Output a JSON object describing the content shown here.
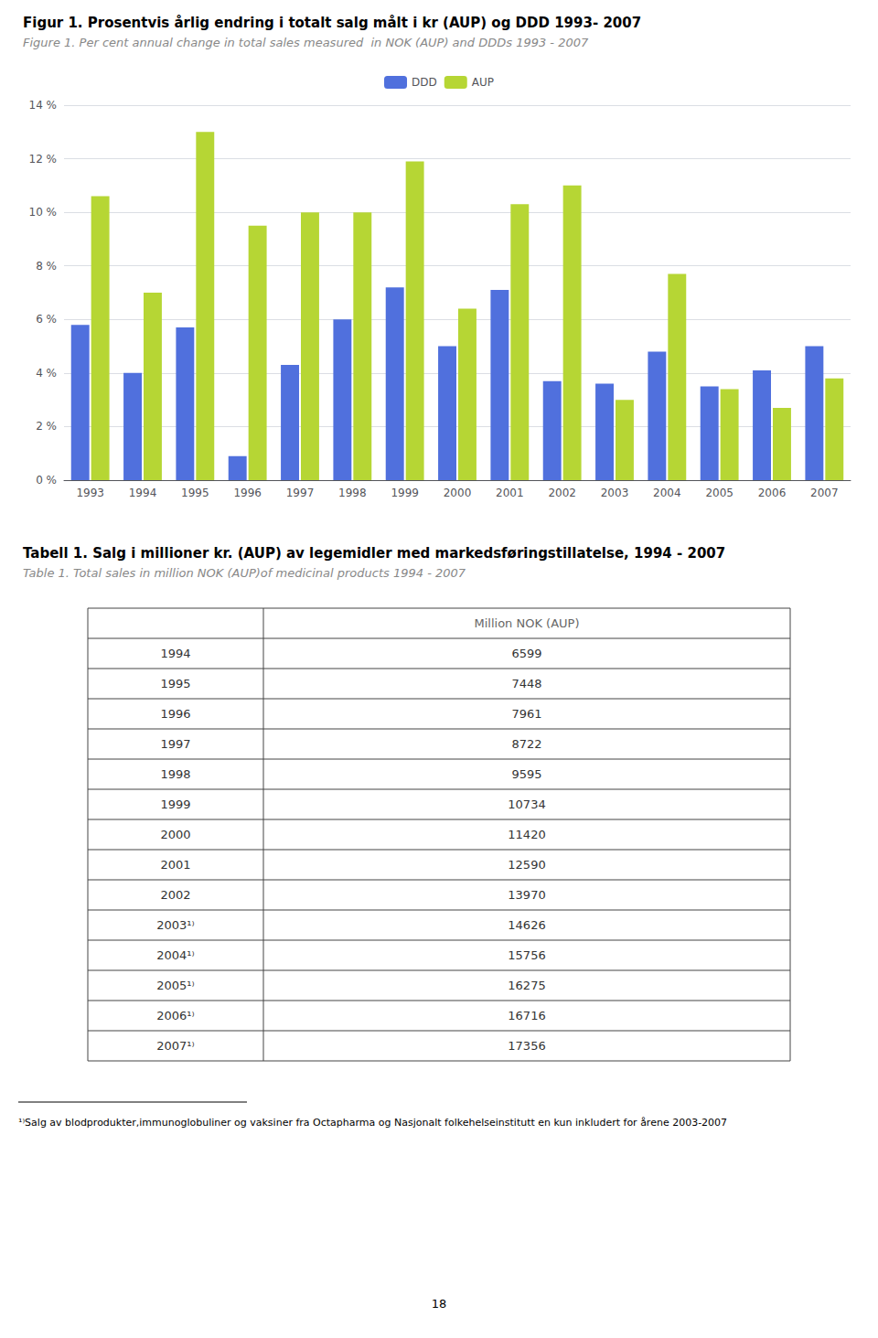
{
  "chart_data": [
    {
      "type": "bar",
      "title": "Figur 1. Prosentvis årlig endring i totalt salg målt i kr (AUP) og DDD 1993- 2007",
      "subtitle": "Figure 1. Per cent annual change in total sales measured  in NOK (AUP) and DDDs 1993 - 2007",
      "categories": [
        1993,
        1994,
        1995,
        1996,
        1997,
        1998,
        1999,
        2000,
        2001,
        2002,
        2003,
        2004,
        2005,
        2006,
        2007
      ],
      "series": [
        {
          "name": "DDD",
          "values": [
            5.8,
            4.0,
            5.7,
            0.9,
            4.3,
            6.0,
            7.2,
            5.0,
            7.1,
            3.7,
            3.6,
            4.8,
            3.5,
            4.1,
            5.0
          ]
        },
        {
          "name": "AUP",
          "values": [
            10.6,
            7.0,
            13.0,
            9.5,
            10.0,
            10.0,
            11.9,
            6.4,
            10.3,
            11.0,
            3.0,
            7.7,
            3.4,
            2.7,
            3.8
          ]
        }
      ],
      "ylim": [
        0,
        14
      ],
      "yticks": [
        {
          "value": 0,
          "label": "0 %"
        },
        {
          "value": 2,
          "label": "2 %"
        },
        {
          "value": 4,
          "label": "4 %"
        },
        {
          "value": 6,
          "label": "6 %"
        },
        {
          "value": 8,
          "label": "8 %"
        },
        {
          "value": 10,
          "label": "10 %"
        },
        {
          "value": 12,
          "label": "12 %"
        },
        {
          "value": 14,
          "label": "14 %"
        }
      ],
      "grid": true,
      "legend": "top"
    },
    {
      "type": "table",
      "title": "Tabell 1. Salg i millioner kr. (AUP) av legemidler med markedsføringstillatelse, 1994 - 2007",
      "subtitle": "Table 1. Total sales in million NOK (AUP)of medicinal products 1994 - 2007",
      "header": "Million NOK (AUP)",
      "categories": [
        "1994",
        "1995",
        "1996",
        "1997",
        "1998",
        "1999",
        "2000",
        "2001",
        "2002",
        "2003¹⁾",
        "2004¹⁾",
        "2005¹⁾",
        "2006¹⁾",
        "2007¹⁾"
      ],
      "values": [
        6599,
        7448,
        7961,
        8722,
        9595,
        10734,
        11420,
        12590,
        13970,
        14626,
        15756,
        16275,
        16716,
        17356
      ],
      "annotations": [
        "¹⁾Salg av blodprodukter,immunoglobuliner og vaksiner fra Octapharma og Nasjonalt folkehelseinstitutt en kun inkludert for årene 2003-2007",
        "18"
      ]
    }
  ]
}
